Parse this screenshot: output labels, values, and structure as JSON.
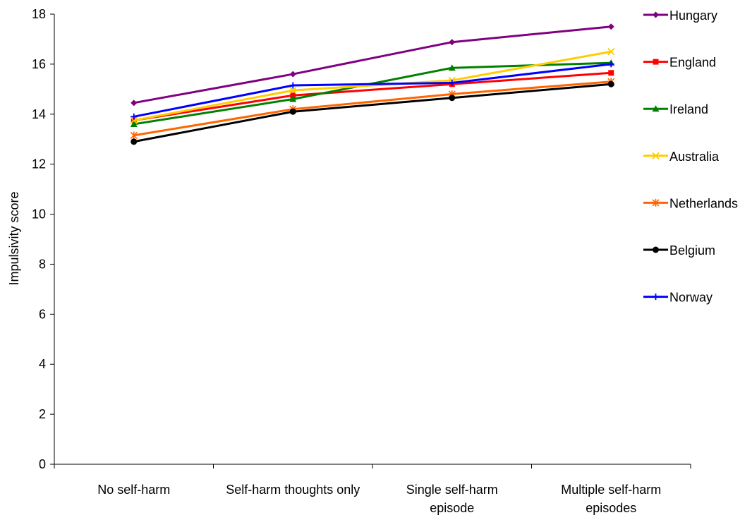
{
  "chart_data": {
    "type": "line",
    "title": "",
    "xlabel": "",
    "ylabel": "Impulsivity score",
    "categories": [
      [
        "No self-harm"
      ],
      [
        "Self-harm thoughts only"
      ],
      [
        "Single self-harm",
        "episode"
      ],
      [
        "Multiple self-harm",
        "episodes"
      ]
    ],
    "ylim": [
      0,
      18
    ],
    "yticks": [
      0,
      2,
      4,
      6,
      8,
      10,
      12,
      14,
      16,
      18
    ],
    "grid": false,
    "legend_position": "right",
    "series": [
      {
        "name": "Hungary",
        "color": "#800080",
        "marker": "diamond",
        "values": [
          14.45,
          15.6,
          16.88,
          17.5
        ]
      },
      {
        "name": "England",
        "color": "#ff0000",
        "marker": "square",
        "values": [
          13.75,
          14.75,
          15.2,
          15.65
        ]
      },
      {
        "name": "Ireland",
        "color": "#008000",
        "marker": "triangle",
        "values": [
          13.6,
          14.6,
          15.85,
          16.05
        ]
      },
      {
        "name": "Australia",
        "color": "#ffcc00",
        "marker": "x",
        "values": [
          13.75,
          14.95,
          15.35,
          16.5
        ]
      },
      {
        "name": "Netherlands",
        "color": "#ff6600",
        "marker": "star",
        "values": [
          13.15,
          14.2,
          14.8,
          15.3
        ]
      },
      {
        "name": "Belgium",
        "color": "#000000",
        "marker": "circle",
        "values": [
          12.9,
          14.1,
          14.65,
          15.2
        ]
      },
      {
        "name": "Norway",
        "color": "#0000ff",
        "marker": "plus",
        "values": [
          13.9,
          15.15,
          15.25,
          16.0
        ]
      }
    ]
  }
}
